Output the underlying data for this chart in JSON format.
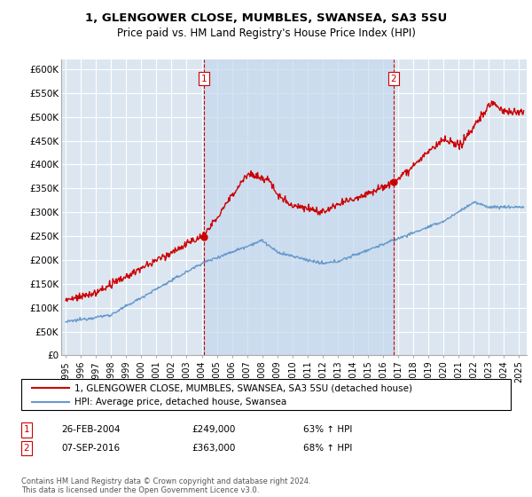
{
  "title1": "1, GLENGOWER CLOSE, MUMBLES, SWANSEA, SA3 5SU",
  "title2": "Price paid vs. HM Land Registry's House Price Index (HPI)",
  "ylabel_ticks": [
    "£0",
    "£50K",
    "£100K",
    "£150K",
    "£200K",
    "£250K",
    "£300K",
    "£350K",
    "£400K",
    "£450K",
    "£500K",
    "£550K",
    "£600K"
  ],
  "ytick_values": [
    0,
    50000,
    100000,
    150000,
    200000,
    250000,
    300000,
    350000,
    400000,
    450000,
    500000,
    550000,
    600000
  ],
  "ylim": [
    0,
    620000
  ],
  "background_color": "#dce6f1",
  "grid_color": "#ffffff",
  "red_color": "#cc0000",
  "blue_color": "#6699cc",
  "shade_color": "#c5d8ee",
  "legend_label_red": "1, GLENGOWER CLOSE, MUMBLES, SWANSEA, SA3 5SU (detached house)",
  "legend_label_blue": "HPI: Average price, detached house, Swansea",
  "transaction1_date": "26-FEB-2004",
  "transaction1_price": "£249,000",
  "transaction1_pct": "63% ↑ HPI",
  "transaction1_year": 2004.15,
  "transaction1_value": 249000,
  "transaction2_date": "07-SEP-2016",
  "transaction2_price": "£363,000",
  "transaction2_pct": "68% ↑ HPI",
  "transaction2_year": 2016.68,
  "transaction2_value": 363000,
  "footer": "Contains HM Land Registry data © Crown copyright and database right 2024.\nThis data is licensed under the Open Government Licence v3.0.",
  "xmin": 1994.7,
  "xmax": 2025.5
}
